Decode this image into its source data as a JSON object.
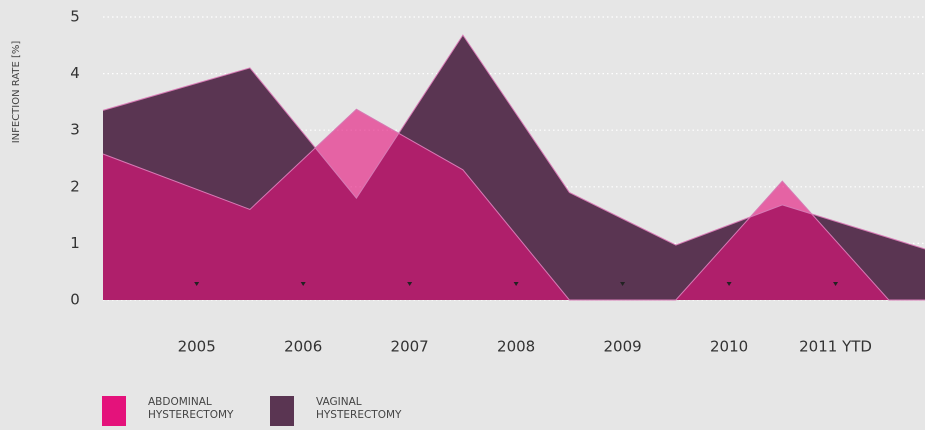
{
  "chart_data": {
    "type": "area",
    "ylabel": "INFECTION RATE [%]",
    "x": [
      2004.12,
      2005.5,
      2006.5,
      2007.5,
      2008.5,
      2009.5,
      2010.5,
      2011.5,
      2011.84
    ],
    "xlim": [
      2004.12,
      2011.84
    ],
    "xticks": [
      2005,
      2006,
      2007,
      2008,
      2009,
      2010,
      {
        "value": 2011,
        "label": "2011 YTD"
      }
    ],
    "ylim": [
      0,
      5
    ],
    "yticks": [
      0,
      1,
      2,
      3,
      4,
      5
    ],
    "grid": true,
    "legend": "bottom-left",
    "series": [
      {
        "name": "VAGINAL HYSTERECTOMY",
        "color": "#5a3552",
        "values": [
          3.35,
          4.1,
          1.8,
          4.68,
          1.9,
          0.97,
          1.68,
          1.1,
          0.9
        ]
      },
      {
        "name": "ABDOMINAL HYSTERECTOMY",
        "color": "#e4127b",
        "values": [
          2.58,
          1.6,
          3.37,
          2.3,
          0,
          0,
          2.1,
          0,
          0
        ]
      }
    ]
  }
}
